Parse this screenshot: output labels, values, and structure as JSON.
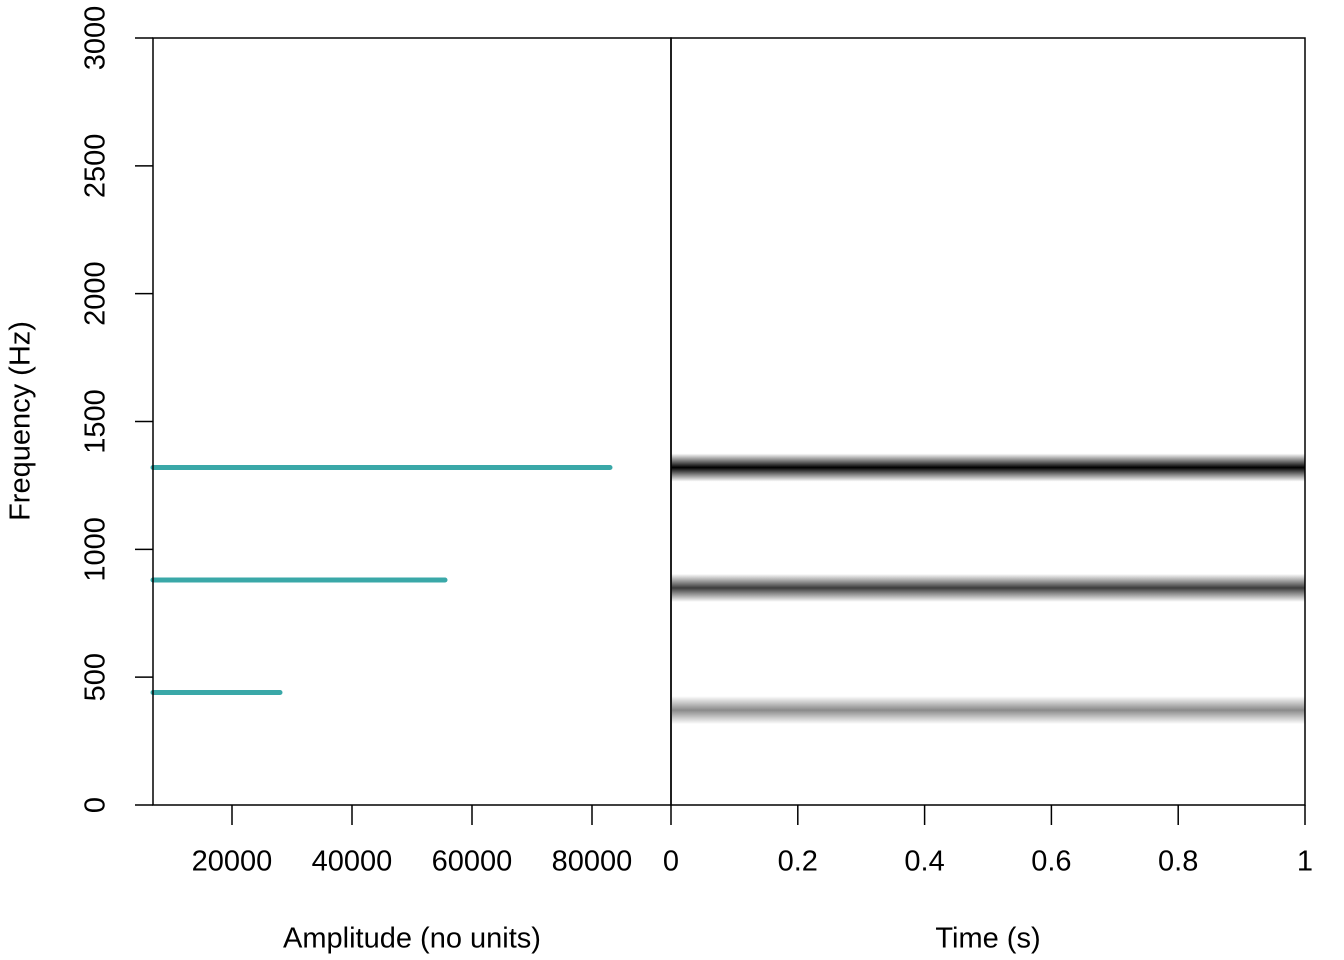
{
  "chart_data": [
    {
      "type": "hbar",
      "ylabel": "Frequency (Hz)",
      "xlabel": "Amplitude (no units)",
      "y": [
        440,
        880,
        1320
      ],
      "values": [
        28000,
        55500,
        83000
      ],
      "color": "#3aa8a8",
      "xlim": [
        6833,
        93167
      ],
      "xticks": [
        20000,
        40000,
        60000,
        80000
      ],
      "ylim": [
        0,
        3000
      ],
      "yticks": [
        0,
        500,
        1000,
        1500,
        2000,
        2500,
        3000
      ]
    },
    {
      "type": "spectrogram",
      "xlabel": "Time (s)",
      "y": [
        371,
        849,
        1320
      ],
      "colors": [
        "#8a8a8a",
        "#3c3c3c",
        "#000000"
      ],
      "xlim": [
        0,
        1
      ],
      "xticks": [
        0,
        0.2,
        0.4,
        0.6,
        0.8,
        1
      ],
      "ylim": [
        0,
        3000
      ]
    }
  ]
}
